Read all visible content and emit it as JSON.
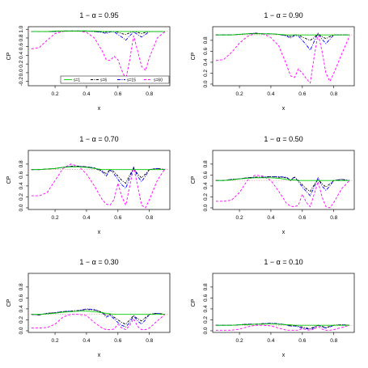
{
  "colors": {
    "s1": "#00cc00",
    "s6": "#000000",
    "s15": "#0000ff",
    "s60": "#ff00ff",
    "nominal": "#e8a0a0",
    "frame": "#000000"
  },
  "legend": [
    "s=1",
    "s=6",
    "s=15",
    "s=60"
  ],
  "chart_data": [
    {
      "type": "line",
      "title": "1 − α = 0.95",
      "xlabel": "x",
      "ylabel": "CP",
      "xlim": [
        0.03,
        0.93
      ],
      "ylim": [
        -0.3,
        1.06
      ],
      "xticks": [
        "0.2",
        "0.4",
        "0.6",
        "0.8"
      ],
      "yticks": [
        "-0.2",
        "0.0",
        "0.2",
        "0.4",
        "0.6",
        "0.8",
        "1.0"
      ],
      "nominal": 0.95,
      "x": [
        0.05,
        0.1,
        0.15,
        0.2,
        0.25,
        0.3,
        0.35,
        0.4,
        0.45,
        0.5,
        0.525,
        0.55,
        0.575,
        0.6,
        0.625,
        0.65,
        0.675,
        0.7,
        0.725,
        0.75,
        0.775,
        0.8,
        0.85,
        0.9
      ],
      "series": [
        {
          "name": "s=1",
          "values": [
            0.95,
            0.95,
            0.95,
            0.96,
            0.96,
            0.96,
            0.96,
            0.96,
            0.96,
            0.95,
            0.95,
            0.95,
            0.95,
            0.95,
            0.95,
            0.95,
            0.95,
            0.95,
            0.95,
            0.95,
            0.95,
            0.95,
            0.95,
            0.95
          ]
        },
        {
          "name": "s=6",
          "values": [
            0.95,
            0.95,
            0.95,
            0.95,
            0.96,
            0.96,
            0.96,
            0.96,
            0.95,
            0.94,
            0.93,
            0.95,
            0.95,
            0.93,
            0.9,
            0.88,
            0.92,
            0.95,
            0.93,
            0.9,
            0.93,
            0.95,
            0.95,
            0.95
          ]
        },
        {
          "name": "s=15",
          "values": [
            0.95,
            0.95,
            0.95,
            0.95,
            0.96,
            0.96,
            0.96,
            0.96,
            0.95,
            0.93,
            0.9,
            0.94,
            0.94,
            0.88,
            0.82,
            0.75,
            0.85,
            0.94,
            0.88,
            0.82,
            0.88,
            0.95,
            0.95,
            0.95
          ]
        },
        {
          "name": "s=60",
          "values": [
            0.55,
            0.58,
            0.75,
            0.9,
            0.95,
            0.96,
            0.96,
            0.93,
            0.8,
            0.5,
            0.3,
            0.28,
            0.38,
            0.3,
            0.05,
            -0.15,
            0.3,
            0.85,
            0.5,
            0.15,
            0.05,
            0.35,
            0.8,
            0.95
          ]
        }
      ]
    },
    {
      "type": "line",
      "title": "1 − α = 0.90",
      "xlabel": "x",
      "ylabel": "CP",
      "xlim": [
        0.03,
        0.93
      ],
      "ylim": [
        -0.03,
        1.05
      ],
      "xticks": [
        "0.2",
        "0.4",
        "0.6",
        "0.8"
      ],
      "yticks": [
        "0.0",
        "0.2",
        "0.4",
        "0.6",
        "0.8"
      ],
      "nominal": 0.9,
      "x": [
        0.05,
        0.1,
        0.15,
        0.2,
        0.25,
        0.3,
        0.35,
        0.4,
        0.45,
        0.5,
        0.525,
        0.55,
        0.575,
        0.6,
        0.625,
        0.65,
        0.675,
        0.7,
        0.725,
        0.75,
        0.775,
        0.8,
        0.85,
        0.9
      ],
      "series": [
        {
          "name": "s=1",
          "values": [
            0.9,
            0.9,
            0.9,
            0.91,
            0.92,
            0.92,
            0.92,
            0.92,
            0.91,
            0.9,
            0.9,
            0.9,
            0.9,
            0.9,
            0.9,
            0.9,
            0.9,
            0.9,
            0.9,
            0.9,
            0.9,
            0.9,
            0.9,
            0.9
          ]
        },
        {
          "name": "s=6",
          "values": [
            0.9,
            0.9,
            0.9,
            0.91,
            0.92,
            0.93,
            0.92,
            0.92,
            0.91,
            0.89,
            0.87,
            0.9,
            0.9,
            0.86,
            0.83,
            0.8,
            0.85,
            0.92,
            0.87,
            0.83,
            0.87,
            0.9,
            0.9,
            0.9
          ]
        },
        {
          "name": "s=15",
          "values": [
            0.9,
            0.9,
            0.9,
            0.91,
            0.92,
            0.93,
            0.92,
            0.92,
            0.91,
            0.88,
            0.84,
            0.89,
            0.88,
            0.8,
            0.72,
            0.62,
            0.78,
            0.93,
            0.82,
            0.74,
            0.82,
            0.9,
            0.9,
            0.9
          ]
        },
        {
          "name": "s=60",
          "values": [
            0.43,
            0.45,
            0.58,
            0.75,
            0.87,
            0.93,
            0.92,
            0.85,
            0.7,
            0.35,
            0.15,
            0.12,
            0.28,
            0.2,
            0.1,
            0.02,
            0.5,
            0.93,
            0.6,
            0.2,
            0.05,
            0.2,
            0.55,
            0.88
          ]
        }
      ]
    },
    {
      "type": "line",
      "title": "1 − α = 0.70",
      "xlabel": "x",
      "ylabel": "CP",
      "xlim": [
        0.03,
        0.93
      ],
      "ylim": [
        -0.03,
        1.05
      ],
      "xticks": [
        "0.2",
        "0.4",
        "0.6",
        "0.8"
      ],
      "yticks": [
        "0.0",
        "0.2",
        "0.4",
        "0.6",
        "0.8"
      ],
      "nominal": 0.7,
      "x": [
        0.05,
        0.1,
        0.15,
        0.2,
        0.25,
        0.3,
        0.35,
        0.4,
        0.45,
        0.5,
        0.525,
        0.55,
        0.575,
        0.6,
        0.625,
        0.65,
        0.675,
        0.7,
        0.725,
        0.75,
        0.775,
        0.8,
        0.85,
        0.9
      ],
      "series": [
        {
          "name": "s=1",
          "values": [
            0.7,
            0.7,
            0.71,
            0.72,
            0.74,
            0.75,
            0.75,
            0.74,
            0.72,
            0.7,
            0.7,
            0.7,
            0.7,
            0.7,
            0.7,
            0.7,
            0.7,
            0.7,
            0.7,
            0.7,
            0.7,
            0.7,
            0.7,
            0.7
          ]
        },
        {
          "name": "s=6",
          "values": [
            0.7,
            0.7,
            0.71,
            0.72,
            0.74,
            0.76,
            0.76,
            0.75,
            0.73,
            0.68,
            0.62,
            0.7,
            0.66,
            0.58,
            0.5,
            0.45,
            0.6,
            0.72,
            0.62,
            0.55,
            0.62,
            0.7,
            0.72,
            0.7
          ]
        },
        {
          "name": "s=15",
          "values": [
            0.7,
            0.7,
            0.71,
            0.72,
            0.74,
            0.76,
            0.76,
            0.75,
            0.73,
            0.66,
            0.58,
            0.69,
            0.62,
            0.52,
            0.42,
            0.36,
            0.55,
            0.74,
            0.58,
            0.48,
            0.58,
            0.7,
            0.72,
            0.7
          ]
        },
        {
          "name": "s=60",
          "values": [
            0.22,
            0.22,
            0.28,
            0.5,
            0.72,
            0.8,
            0.76,
            0.62,
            0.4,
            0.15,
            0.07,
            0.05,
            0.15,
            0.45,
            0.2,
            0.05,
            0.4,
            0.75,
            0.4,
            0.05,
            0.0,
            0.15,
            0.5,
            0.72
          ]
        }
      ]
    },
    {
      "type": "line",
      "title": "1 − α = 0.50",
      "xlabel": "x",
      "ylabel": "CP",
      "xlim": [
        0.03,
        0.93
      ],
      "ylim": [
        -0.03,
        1.05
      ],
      "xticks": [
        "0.2",
        "0.4",
        "0.6",
        "0.8"
      ],
      "yticks": [
        "0.0",
        "0.2",
        "0.4",
        "0.6",
        "0.8"
      ],
      "nominal": 0.5,
      "x": [
        0.05,
        0.1,
        0.15,
        0.2,
        0.25,
        0.3,
        0.35,
        0.4,
        0.45,
        0.5,
        0.525,
        0.55,
        0.575,
        0.6,
        0.625,
        0.65,
        0.675,
        0.7,
        0.725,
        0.75,
        0.775,
        0.8,
        0.85,
        0.9
      ],
      "series": [
        {
          "name": "s=1",
          "values": [
            0.5,
            0.5,
            0.51,
            0.53,
            0.54,
            0.55,
            0.55,
            0.55,
            0.54,
            0.52,
            0.51,
            0.51,
            0.5,
            0.5,
            0.5,
            0.5,
            0.5,
            0.5,
            0.5,
            0.5,
            0.5,
            0.5,
            0.5,
            0.5
          ]
        },
        {
          "name": "s=6",
          "values": [
            0.5,
            0.5,
            0.52,
            0.53,
            0.55,
            0.56,
            0.56,
            0.57,
            0.56,
            0.55,
            0.5,
            0.56,
            0.5,
            0.42,
            0.35,
            0.3,
            0.42,
            0.52,
            0.44,
            0.38,
            0.44,
            0.5,
            0.52,
            0.5
          ]
        },
        {
          "name": "s=15",
          "values": [
            0.5,
            0.5,
            0.52,
            0.53,
            0.55,
            0.56,
            0.56,
            0.57,
            0.57,
            0.56,
            0.5,
            0.57,
            0.48,
            0.38,
            0.3,
            0.22,
            0.38,
            0.55,
            0.4,
            0.32,
            0.4,
            0.5,
            0.52,
            0.5
          ]
        },
        {
          "name": "s=60",
          "values": [
            0.12,
            0.12,
            0.14,
            0.28,
            0.5,
            0.6,
            0.58,
            0.5,
            0.3,
            0.08,
            0.03,
            0.02,
            0.05,
            0.25,
            0.1,
            0.02,
            0.25,
            0.48,
            0.2,
            0.02,
            0.0,
            0.1,
            0.35,
            0.5
          ]
        }
      ]
    },
    {
      "type": "line",
      "title": "1 − α = 0.30",
      "xlabel": "x",
      "ylabel": "CP",
      "xlim": [
        0.03,
        0.93
      ],
      "ylim": [
        -0.03,
        1.05
      ],
      "xticks": [
        "0.2",
        "0.4",
        "0.6",
        "0.8"
      ],
      "yticks": [
        "0.0",
        "0.2",
        "0.4",
        "0.6",
        "0.8"
      ],
      "nominal": 0.3,
      "x": [
        0.05,
        0.1,
        0.15,
        0.2,
        0.25,
        0.3,
        0.35,
        0.4,
        0.45,
        0.5,
        0.525,
        0.55,
        0.575,
        0.6,
        0.625,
        0.65,
        0.675,
        0.7,
        0.725,
        0.75,
        0.775,
        0.8,
        0.85,
        0.9
      ],
      "series": [
        {
          "name": "s=1",
          "values": [
            0.3,
            0.3,
            0.31,
            0.32,
            0.34,
            0.35,
            0.36,
            0.36,
            0.35,
            0.33,
            0.32,
            0.31,
            0.3,
            0.3,
            0.3,
            0.3,
            0.3,
            0.3,
            0.3,
            0.3,
            0.3,
            0.3,
            0.3,
            0.3
          ]
        },
        {
          "name": "s=6",
          "values": [
            0.3,
            0.29,
            0.32,
            0.33,
            0.35,
            0.36,
            0.37,
            0.39,
            0.38,
            0.34,
            0.28,
            0.3,
            0.25,
            0.2,
            0.15,
            0.12,
            0.2,
            0.28,
            0.22,
            0.18,
            0.24,
            0.3,
            0.32,
            0.3
          ]
        },
        {
          "name": "s=15",
          "values": [
            0.3,
            0.29,
            0.32,
            0.33,
            0.35,
            0.36,
            0.37,
            0.4,
            0.39,
            0.33,
            0.25,
            0.28,
            0.22,
            0.15,
            0.1,
            0.07,
            0.15,
            0.27,
            0.18,
            0.12,
            0.2,
            0.3,
            0.32,
            0.3
          ]
        },
        {
          "name": "s=60",
          "values": [
            0.05,
            0.05,
            0.06,
            0.12,
            0.25,
            0.3,
            0.3,
            0.28,
            0.15,
            0.05,
            0.02,
            0.02,
            0.03,
            0.12,
            0.05,
            0.02,
            0.1,
            0.22,
            0.08,
            0.02,
            0.02,
            0.05,
            0.18,
            0.3
          ]
        }
      ]
    },
    {
      "type": "line",
      "title": "1 − α = 0.10",
      "xlabel": "x",
      "ylabel": "CP",
      "xlim": [
        0.03,
        0.93
      ],
      "ylim": [
        -0.03,
        1.05
      ],
      "xticks": [
        "0.2",
        "0.4",
        "0.6",
        "0.8"
      ],
      "yticks": [
        "0.0",
        "0.2",
        "0.4",
        "0.6",
        "0.8"
      ],
      "nominal": 0.1,
      "x": [
        0.05,
        0.1,
        0.15,
        0.2,
        0.25,
        0.3,
        0.35,
        0.4,
        0.45,
        0.5,
        0.525,
        0.55,
        0.575,
        0.6,
        0.625,
        0.65,
        0.675,
        0.7,
        0.725,
        0.75,
        0.775,
        0.8,
        0.85,
        0.9
      ],
      "series": [
        {
          "name": "s=1",
          "values": [
            0.1,
            0.1,
            0.1,
            0.11,
            0.11,
            0.12,
            0.12,
            0.13,
            0.12,
            0.11,
            0.11,
            0.1,
            0.1,
            0.1,
            0.1,
            0.1,
            0.1,
            0.1,
            0.1,
            0.1,
            0.1,
            0.1,
            0.1,
            0.1
          ]
        },
        {
          "name": "s=6",
          "values": [
            0.1,
            0.1,
            0.1,
            0.11,
            0.12,
            0.12,
            0.13,
            0.13,
            0.12,
            0.11,
            0.09,
            0.1,
            0.08,
            0.07,
            0.05,
            0.04,
            0.07,
            0.1,
            0.08,
            0.06,
            0.08,
            0.1,
            0.11,
            0.1
          ]
        },
        {
          "name": "s=15",
          "values": [
            0.1,
            0.1,
            0.1,
            0.11,
            0.12,
            0.12,
            0.13,
            0.14,
            0.13,
            0.11,
            0.08,
            0.09,
            0.07,
            0.05,
            0.04,
            0.03,
            0.05,
            0.1,
            0.07,
            0.05,
            0.07,
            0.1,
            0.11,
            0.1
          ]
        },
        {
          "name": "s=60",
          "values": [
            0.01,
            0.01,
            0.01,
            0.03,
            0.07,
            0.1,
            0.1,
            0.09,
            0.05,
            0.01,
            0.01,
            0.01,
            0.01,
            0.04,
            0.02,
            0.01,
            0.03,
            0.08,
            0.03,
            0.01,
            0.01,
            0.02,
            0.06,
            0.1
          ]
        }
      ]
    }
  ]
}
